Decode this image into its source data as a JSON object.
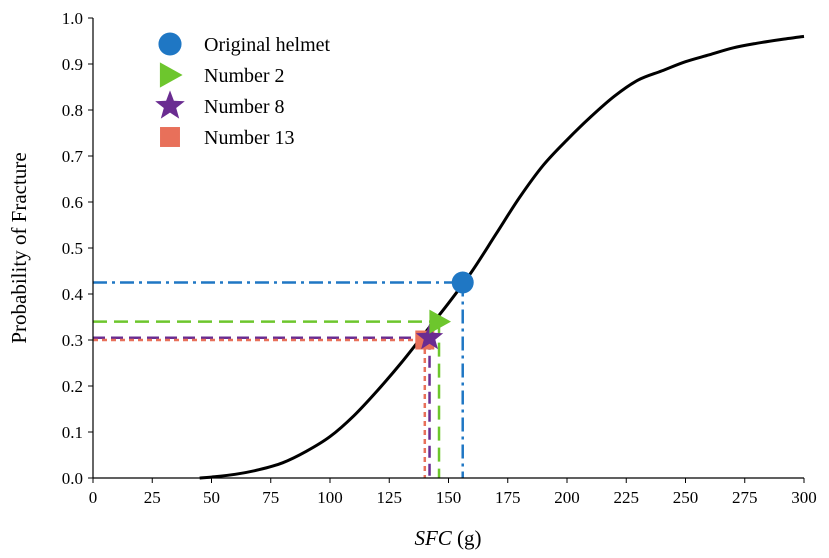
{
  "chart_data": {
    "type": "line",
    "xlabel_italic": "SFC",
    "xlabel_unit": " (g)",
    "ylabel": "Probability of Fracture",
    "xlim": [
      0,
      300
    ],
    "ylim": [
      0,
      1.0
    ],
    "x_ticks": [
      0,
      25,
      50,
      75,
      100,
      125,
      150,
      175,
      200,
      225,
      250,
      275,
      300
    ],
    "y_ticks": [
      "0.0",
      "0.1",
      "0.2",
      "0.3",
      "0.4",
      "0.5",
      "0.6",
      "0.7",
      "0.8",
      "0.9",
      "1.0"
    ],
    "curve": {
      "color": "#000000",
      "x": [
        45,
        50,
        60,
        70,
        80,
        90,
        100,
        110,
        120,
        130,
        140,
        150,
        160,
        170,
        180,
        190,
        200,
        210,
        220,
        230,
        240,
        250,
        260,
        270,
        280,
        290,
        300
      ],
      "y": [
        0.0,
        0.002,
        0.008,
        0.018,
        0.033,
        0.058,
        0.09,
        0.135,
        0.19,
        0.25,
        0.315,
        0.38,
        0.45,
        0.53,
        0.61,
        0.68,
        0.735,
        0.785,
        0.83,
        0.865,
        0.885,
        0.905,
        0.92,
        0.935,
        0.945,
        0.953,
        0.96
      ]
    },
    "legend_position": "top-left",
    "points": [
      {
        "name": "Original helmet",
        "marker": "circle",
        "color": "#1f77c4",
        "dash": "14,5,3,5",
        "x": 156,
        "y": 0.425
      },
      {
        "name": "Number 2",
        "marker": "triangle-right",
        "color": "#6dc62d",
        "dash": "14,7",
        "x": 146,
        "y": 0.34
      },
      {
        "name": "Number 8",
        "marker": "star",
        "color": "#6a2c91",
        "dash": "12,6",
        "x": 142,
        "y": 0.305
      },
      {
        "name": "Number 13",
        "marker": "square",
        "color": "#e8705a",
        "dash": "5,4",
        "x": 140,
        "y": 0.3
      }
    ]
  }
}
